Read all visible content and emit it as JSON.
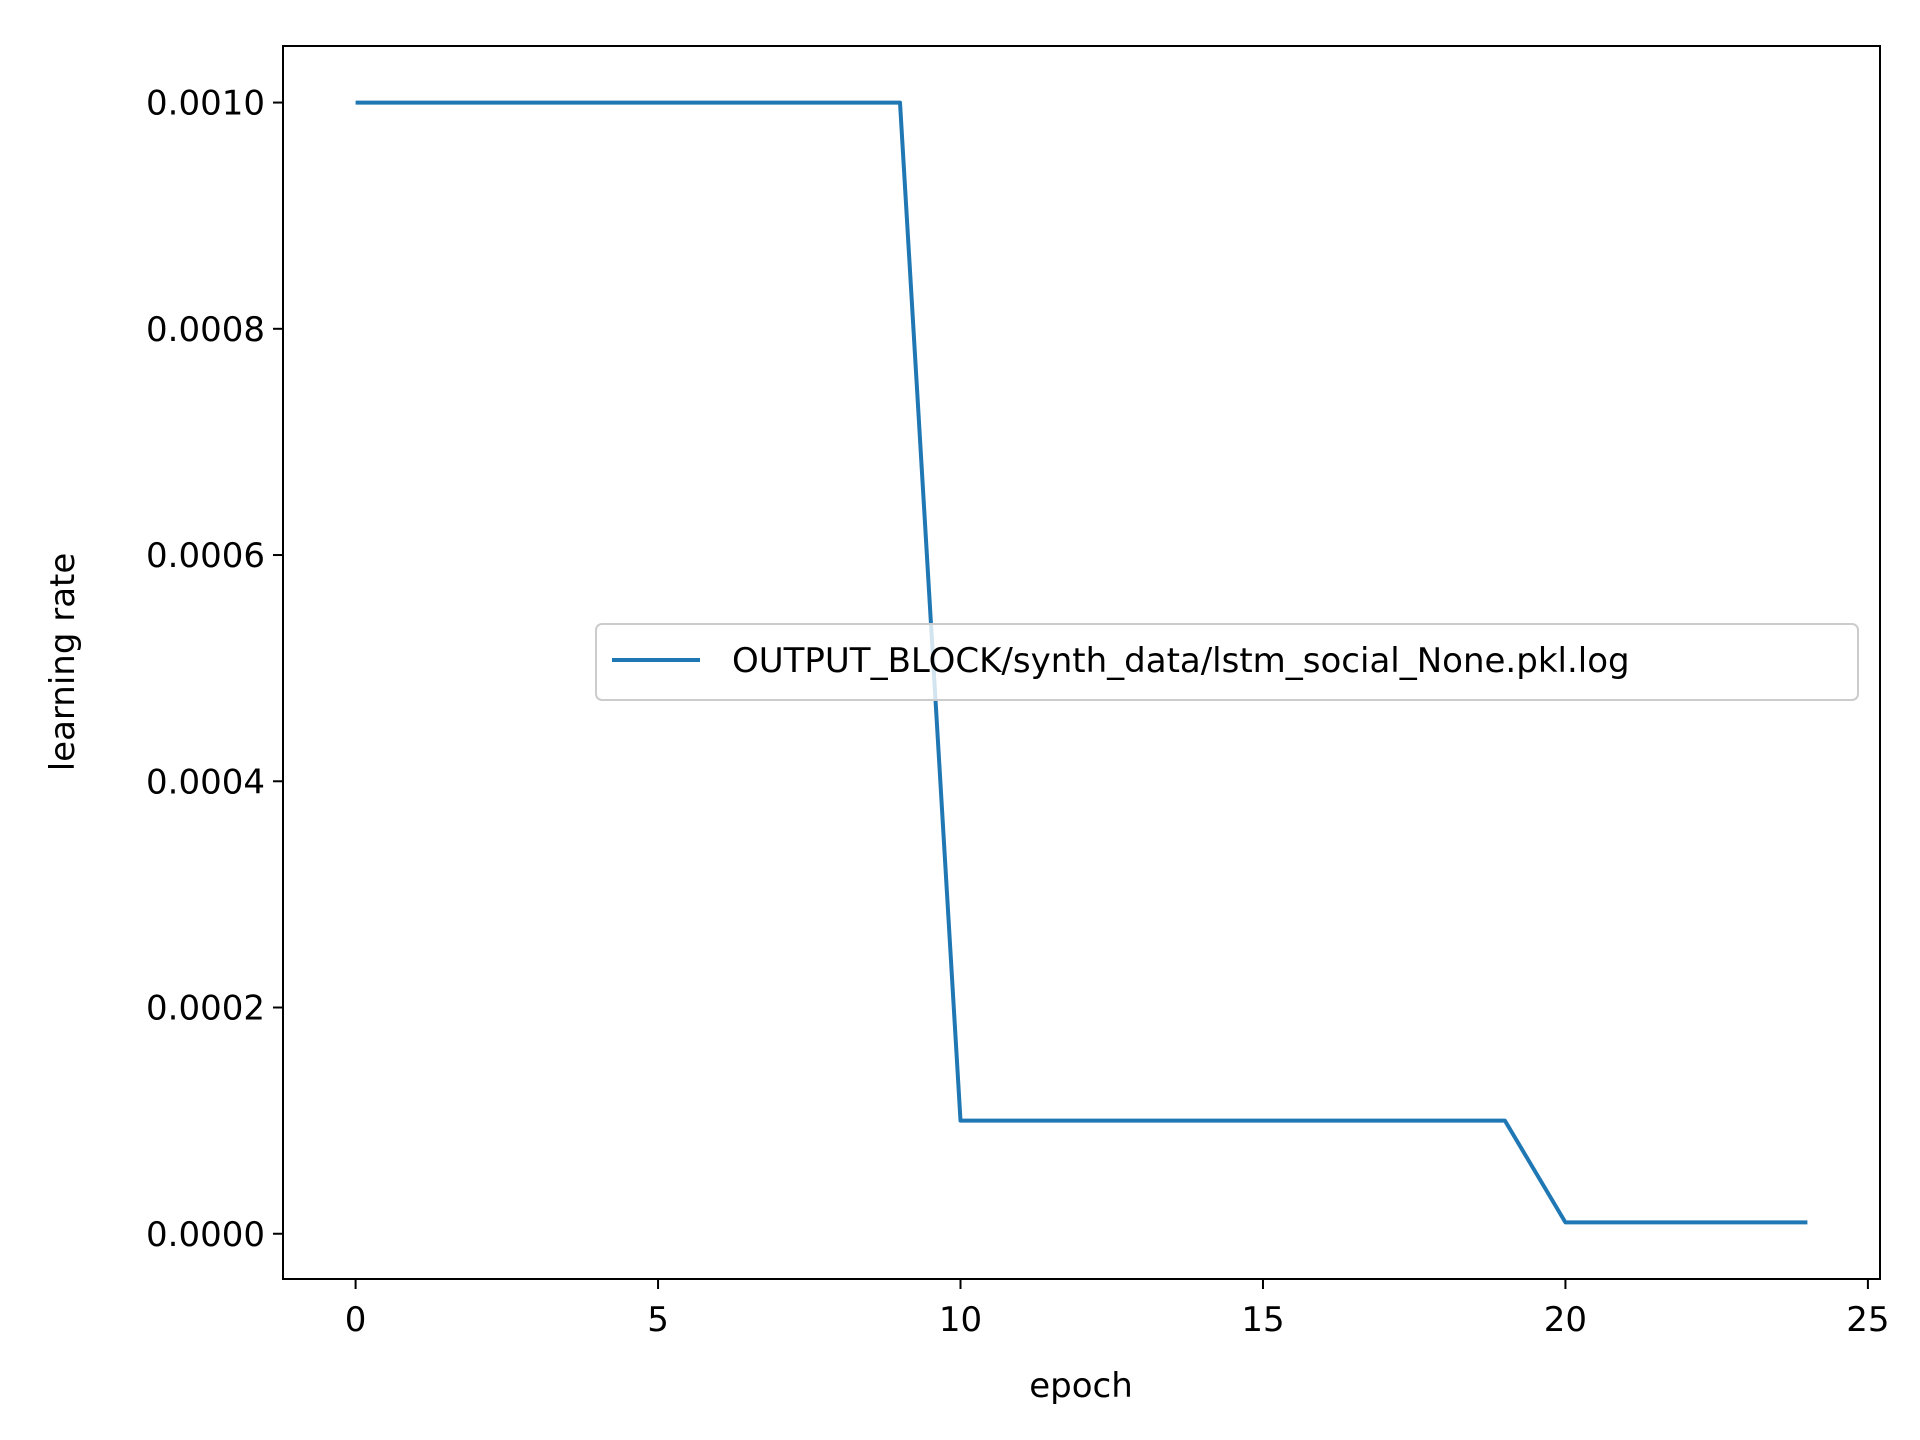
{
  "chart_data": {
    "type": "line",
    "title": "",
    "xlabel": "epoch",
    "ylabel": "learning rate",
    "xlim": [
      -1.2,
      25.2
    ],
    "ylim": [
      -4e-05,
      0.00105
    ],
    "xticks": [
      0,
      5,
      10,
      15,
      20,
      25
    ],
    "xtick_labels": [
      "0",
      "5",
      "10",
      "15",
      "20",
      "25"
    ],
    "yticks": [
      0.0,
      0.0002,
      0.0004,
      0.0006,
      0.0008,
      0.001
    ],
    "ytick_labels": [
      "0.0000",
      "0.0002",
      "0.0004",
      "0.0006",
      "0.0008",
      "0.0010"
    ],
    "grid": false,
    "legend_position": "center-right",
    "series": [
      {
        "name": "OUTPUT_BLOCK/synth_data/lstm_social_None.pkl.log",
        "color": "#1f77b4",
        "x": [
          0,
          1,
          2,
          3,
          4,
          5,
          6,
          7,
          8,
          9,
          10,
          11,
          12,
          13,
          14,
          15,
          16,
          17,
          18,
          19,
          20,
          21,
          22,
          23,
          24
        ],
        "y": [
          0.001,
          0.001,
          0.001,
          0.001,
          0.001,
          0.001,
          0.001,
          0.001,
          0.001,
          0.001,
          0.0001,
          0.0001,
          0.0001,
          0.0001,
          0.0001,
          0.0001,
          0.0001,
          0.0001,
          0.0001,
          0.0001,
          1e-05,
          1e-05,
          1e-05,
          1e-05,
          1e-05
        ]
      }
    ]
  }
}
